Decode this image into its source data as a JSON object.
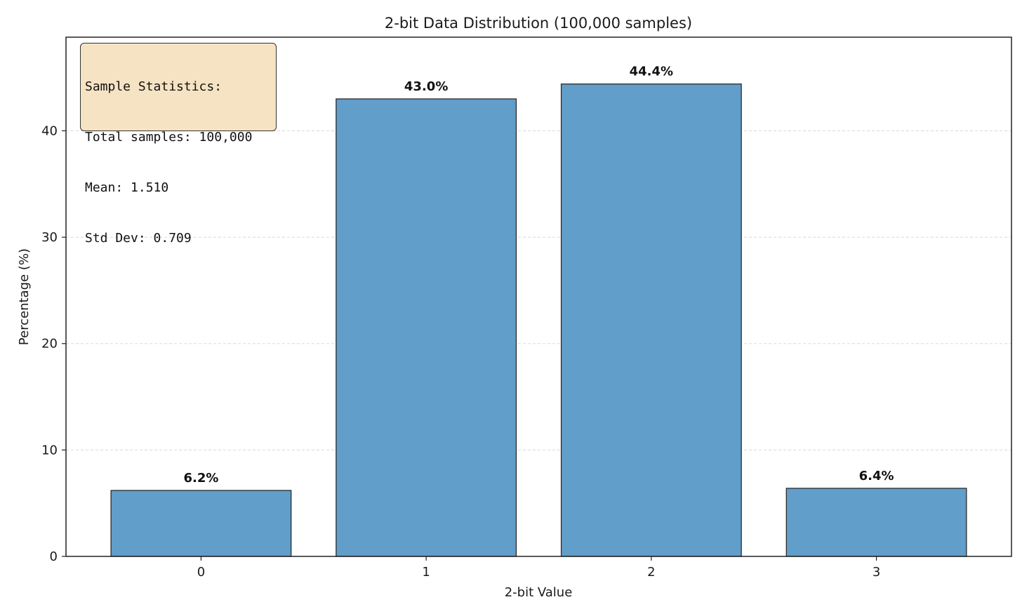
{
  "colors": {
    "bar_fill": "#619ec9",
    "bar_edge": "#2b2b2b",
    "grid": "#d9d9d9",
    "stats_box_fill": "#f6e3c3"
  },
  "stats_box": {
    "lines": [
      "Sample Statistics:",
      "Total samples: 100,000",
      "Mean: 1.510",
      "Std Dev: 0.709"
    ]
  },
  "chart_data": {
    "type": "bar",
    "title": "2-bit Data Distribution (100,000 samples)",
    "xlabel": "2-bit Value",
    "ylabel": "Percentage (%)",
    "categories": [
      "0",
      "1",
      "2",
      "3"
    ],
    "values": [
      6.2,
      43.0,
      44.4,
      6.4
    ],
    "data_labels": [
      "6.2%",
      "43.0%",
      "44.4%",
      "6.4%"
    ],
    "ylim": [
      0,
      48.8
    ],
    "yticks": [
      0,
      10,
      20,
      30,
      40
    ],
    "grid": "y-axis, dashed",
    "legend": "none"
  }
}
